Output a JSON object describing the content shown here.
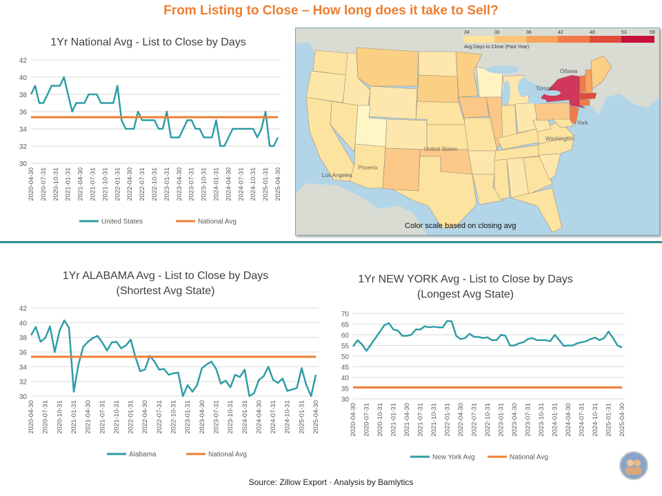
{
  "page": {
    "title": "From Listing to Close – How long does it take to Sell?",
    "source": "Source: Zillow Export · Analysis by Bamlytics"
  },
  "map": {
    "scale_title": "Avg Days to Close (Past Year)",
    "scale_ticks": [
      "24",
      "30",
      "36",
      "42",
      "48",
      "53",
      "59"
    ],
    "scale_colors": [
      "#fff5c0",
      "#fde39b",
      "#fcc57a",
      "#f9a45e",
      "#f27a48",
      "#e04a3a",
      "#c8103a"
    ],
    "note": "Color scale based on closing avg",
    "labels": [
      "Ottawa",
      "Toronto",
      "York",
      "Washington",
      "United States",
      "Los Angeles",
      "Phoenix"
    ],
    "states_by_color": {
      "light": [
        "Utah",
        "Wisconsin"
      ],
      "darkest": [
        "New York"
      ],
      "dark": [
        "Vermont",
        "New Hampshire",
        "Massachusetts",
        "Connecticut",
        "New Jersey"
      ],
      "medium": [
        "Montana",
        "Minnesota",
        "South Dakota",
        "Iowa",
        "Oklahoma",
        "New Mexico",
        "Maine",
        "Illinois",
        "Pennsylvania"
      ]
    }
  },
  "chart_data": [
    {
      "id": "national",
      "type": "line",
      "title": "1Yr National Avg - List to Close by Days",
      "subtitle": "",
      "x": [
        "2020-04-30",
        "2020-05-31",
        "2020-06-30",
        "2020-07-31",
        "2020-08-31",
        "2020-09-30",
        "2020-10-31",
        "2020-11-30",
        "2020-12-31",
        "2021-01-31",
        "2021-02-28",
        "2021-03-31",
        "2021-04-30",
        "2021-05-31",
        "2021-06-30",
        "2021-07-31",
        "2021-08-31",
        "2021-09-30",
        "2021-10-31",
        "2021-11-30",
        "2021-12-31",
        "2022-01-31",
        "2022-02-28",
        "2022-03-31",
        "2022-04-30",
        "2022-05-31",
        "2022-06-30",
        "2022-07-31",
        "2022-08-31",
        "2022-09-30",
        "2022-10-31",
        "2022-11-30",
        "2022-12-31",
        "2023-01-31",
        "2023-02-28",
        "2023-03-31",
        "2023-04-30",
        "2023-05-31",
        "2023-06-30",
        "2023-07-31",
        "2023-08-31",
        "2023-09-30",
        "2023-10-31",
        "2023-11-30",
        "2023-12-31",
        "2024-01-31",
        "2024-02-29",
        "2024-03-31",
        "2024-04-30",
        "2024-05-31",
        "2024-06-30",
        "2024-07-31",
        "2024-08-31",
        "2024-09-30",
        "2024-10-31",
        "2024-11-30",
        "2024-12-31",
        "2025-01-31",
        "2025-02-28",
        "2025-03-31",
        "2025-04-30"
      ],
      "x_tick_labels": [
        "2020-04-30",
        "2020-07-31",
        "2020-10-31",
        "2021-01-31",
        "2021-04-30",
        "2021-07-31",
        "2021-10-31",
        "2022-01-31",
        "2022-04-30",
        "2022-07-31",
        "2022-10-31",
        "2023-01-31",
        "2023-04-30",
        "2023-07-31",
        "2023-10-31",
        "2024-01-31",
        "2024-04-30",
        "2024-07-31",
        "2024-10-31",
        "2025-01-31",
        "2025-04-30"
      ],
      "series": [
        {
          "name": "United States",
          "color": "#2e9ca6",
          "values": [
            38,
            39,
            37,
            37,
            38,
            39,
            39,
            39,
            40,
            38,
            36,
            37,
            37,
            37,
            38,
            38,
            38,
            37,
            37,
            37,
            37,
            39,
            35,
            34,
            34,
            34,
            36,
            35,
            35,
            35,
            35,
            34,
            34,
            36,
            33,
            33,
            33,
            34,
            35,
            35,
            34,
            34,
            33,
            33,
            33,
            35,
            32,
            32,
            33,
            34,
            34,
            34,
            34,
            34,
            34,
            33,
            34,
            36,
            32,
            32,
            33
          ]
        },
        {
          "name": "National Avg",
          "color": "#ed7d31",
          "constant": 35.35
        }
      ],
      "ylim": [
        30,
        42
      ],
      "y_ticks": [
        30,
        32,
        34,
        36,
        38,
        40,
        42
      ],
      "grid": true,
      "legend": "bottom"
    },
    {
      "id": "alabama",
      "type": "line",
      "title": "1Yr ALABAMA Avg - List to Close by Days",
      "subtitle": "(Shortest Avg State)",
      "x": [
        "2020-04-30",
        "2020-05-31",
        "2020-06-30",
        "2020-07-31",
        "2020-08-31",
        "2020-09-30",
        "2020-10-31",
        "2020-11-30",
        "2020-12-31",
        "2021-01-31",
        "2021-02-28",
        "2021-03-31",
        "2021-04-30",
        "2021-05-31",
        "2021-06-30",
        "2021-07-31",
        "2021-08-31",
        "2021-09-30",
        "2021-10-31",
        "2021-11-30",
        "2021-12-31",
        "2022-01-31",
        "2022-02-28",
        "2022-03-31",
        "2022-04-30",
        "2022-05-31",
        "2022-06-30",
        "2022-07-31",
        "2022-08-31",
        "2022-09-30",
        "2022-10-31",
        "2022-11-30",
        "2022-12-31",
        "2023-01-31",
        "2023-02-28",
        "2023-03-31",
        "2023-04-30",
        "2023-05-31",
        "2023-06-30",
        "2023-07-31",
        "2023-08-31",
        "2023-09-30",
        "2023-10-31",
        "2023-11-30",
        "2023-12-31",
        "2024-01-31",
        "2024-02-29",
        "2024-03-31",
        "2024-04-30",
        "2024-05-31",
        "2024-06-30",
        "2024-07-31",
        "2024-08-31",
        "2024-09-30",
        "2024-10-31",
        "2024-11-30",
        "2024-12-31",
        "2025-01-31",
        "2025-02-28",
        "2025-03-31",
        "2025-04-30"
      ],
      "x_tick_labels": [
        "2020-04-30",
        "2020-07-31",
        "2020-10-31",
        "2021-01-31",
        "2021-04-30",
        "2021-07-31",
        "2021-10-31",
        "2022-01-31",
        "2022-04-30",
        "2022-07-31",
        "2022-10-31",
        "2023-01-31",
        "2023-04-30",
        "2023-07-31",
        "2023-10-31",
        "2024-01-31",
        "2024-04-30",
        "2024-07-31",
        "2024-10-31",
        "2025-01-31",
        "2025-04-30"
      ],
      "series": [
        {
          "name": "Alabama",
          "color": "#2e9ca6",
          "values": [
            38.3,
            39.4,
            37.4,
            37.9,
            39.5,
            36.0,
            38.9,
            40.3,
            39.3,
            30.6,
            34.3,
            36.7,
            37.4,
            37.9,
            38.2,
            37.3,
            36.2,
            37.3,
            37.4,
            36.5,
            36.9,
            37.7,
            35.3,
            33.4,
            33.6,
            35.5,
            34.7,
            33.6,
            33.7,
            32.9,
            33.1,
            33.2,
            29.8,
            31.5,
            30.6,
            31.5,
            33.8,
            34.3,
            34.7,
            33.7,
            31.7,
            32.1,
            31.2,
            32.9,
            32.6,
            33.6,
            29.9,
            30.4,
            32.2,
            32.7,
            34.0,
            32.2,
            31.8,
            32.4,
            30.7,
            30.9,
            31.1,
            33.8,
            31.5,
            30.0,
            32.9
          ]
        },
        {
          "name": "National Avg",
          "color": "#ed7d31",
          "constant": 35.35
        }
      ],
      "ylim": [
        30,
        42
      ],
      "y_ticks": [
        30,
        32,
        34,
        36,
        38,
        40,
        42
      ],
      "grid": true,
      "legend": "bottom"
    },
    {
      "id": "newyork",
      "type": "line",
      "title": "1Yr NEW YORK Avg - List to Close by Days",
      "subtitle": "(Longest Avg State)",
      "x": [
        "2020-04-30",
        "2020-05-31",
        "2020-06-30",
        "2020-07-31",
        "2020-08-31",
        "2020-09-30",
        "2020-10-31",
        "2020-11-30",
        "2020-12-31",
        "2021-01-31",
        "2021-02-28",
        "2021-03-31",
        "2021-04-30",
        "2021-05-31",
        "2021-06-30",
        "2021-07-31",
        "2021-08-31",
        "2021-09-30",
        "2021-10-31",
        "2021-11-30",
        "2021-12-31",
        "2022-01-31",
        "2022-02-28",
        "2022-03-31",
        "2022-04-30",
        "2022-05-31",
        "2022-06-30",
        "2022-07-31",
        "2022-08-31",
        "2022-09-30",
        "2022-10-31",
        "2022-11-30",
        "2022-12-31",
        "2023-01-31",
        "2023-02-28",
        "2023-03-31",
        "2023-04-30",
        "2023-05-31",
        "2023-06-30",
        "2023-07-31",
        "2023-08-31",
        "2023-09-30",
        "2023-10-31",
        "2023-11-30",
        "2023-12-31",
        "2024-01-31",
        "2024-02-29",
        "2024-03-31",
        "2024-04-30",
        "2024-05-31",
        "2024-06-30",
        "2024-07-31",
        "2024-08-31",
        "2024-09-30",
        "2024-10-31",
        "2024-11-30",
        "2024-12-31",
        "2025-01-31",
        "2025-02-28",
        "2025-03-31",
        "2025-04-30"
      ],
      "x_tick_labels": [
        "2020-04-30",
        "2020-07-31",
        "2020-10-31",
        "2021-01-31",
        "2021-04-30",
        "2021-07-31",
        "2021-10-31",
        "2022-01-31",
        "2022-04-30",
        "2022-07-31",
        "2022-10-31",
        "2023-01-31",
        "2023-04-30",
        "2023-07-31",
        "2023-10-31",
        "2024-01-31",
        "2024-04-30",
        "2024-07-31",
        "2024-10-31",
        "2025-01-31",
        "2025-04-30"
      ],
      "series": [
        {
          "name": "New York Avg",
          "color": "#2e9ca6",
          "values": [
            54.5,
            57.5,
            55.5,
            52.5,
            55.5,
            58.5,
            61.5,
            64.5,
            65.5,
            62.5,
            62.0,
            59.5,
            59.5,
            60.0,
            62.5,
            62.5,
            64.0,
            63.5,
            63.8,
            63.5,
            63.5,
            66.5,
            66.3,
            59.5,
            58.0,
            58.5,
            60.5,
            59.0,
            59.0,
            58.5,
            58.8,
            57.5,
            57.5,
            60.0,
            59.5,
            55.0,
            55.0,
            56.0,
            56.5,
            58.0,
            58.5,
            57.5,
            57.5,
            57.5,
            57.0,
            60.0,
            57.5,
            54.8,
            55.0,
            55.0,
            56.0,
            56.5,
            57.0,
            58.0,
            58.7,
            57.5,
            58.5,
            61.5,
            58.5,
            55.0,
            54.0
          ]
        },
        {
          "name": "National Avg",
          "color": "#ed7d31",
          "constant": 35.35
        }
      ],
      "ylim": [
        30,
        70
      ],
      "y_ticks": [
        30,
        35,
        40,
        45,
        50,
        55,
        60,
        65,
        70
      ],
      "grid": true,
      "legend": "bottom"
    }
  ]
}
